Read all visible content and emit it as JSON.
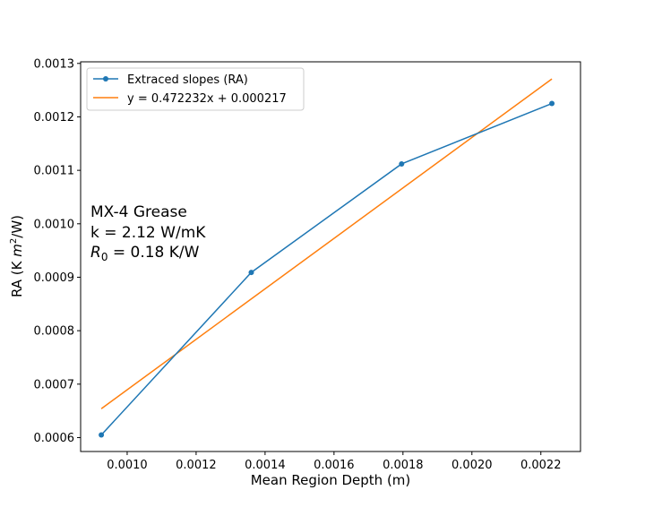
{
  "chart_data": {
    "type": "line",
    "title": "",
    "xlabel": "Mean Region Depth (m)",
    "ylabel_prefix": "RA (K ",
    "ylabel_unit_base": "m",
    "ylabel_unit_exp": "2",
    "ylabel_suffix": "/W)",
    "xlim": [
      0.000865,
      0.002315
    ],
    "ylim": [
      0.000574,
      0.001303
    ],
    "xticks": [
      0.001,
      0.0012,
      0.0014,
      0.0016,
      0.0018,
      0.002,
      0.0022
    ],
    "xtick_labels": [
      "0.0010",
      "0.0012",
      "0.0014",
      "0.0016",
      "0.0018",
      "0.0020",
      "0.0022"
    ],
    "yticks": [
      0.0006,
      0.0007,
      0.0008,
      0.0009,
      0.001,
      0.0011,
      0.0012,
      0.0013
    ],
    "ytick_labels": [
      "0.0006",
      "0.0007",
      "0.0008",
      "0.0009",
      "0.0010",
      "0.0011",
      "0.0012",
      "0.0013"
    ],
    "grid": false,
    "legend_position": "top-left",
    "series": [
      {
        "name": "Extraced slopes (RA)",
        "color": "#1f77b4",
        "marker": "circle",
        "x": [
          0.000925,
          0.00136,
          0.001796,
          0.002232
        ],
        "y": [
          0.000605,
          0.000909,
          0.001112,
          0.001225
        ]
      },
      {
        "name": "y = 0.472232x + 0.000217",
        "color": "#ff7f0e",
        "marker": "none",
        "x": [
          0.000925,
          0.002232
        ],
        "y": [
          0.000654,
          0.001271
        ]
      }
    ],
    "annotation": {
      "line1": "MX-4 Grease",
      "line2": "k = 2.12 W/mK",
      "line3_sym": "R",
      "line3_sub": "0",
      "line3_rest": " = 0.18 K/W"
    }
  }
}
